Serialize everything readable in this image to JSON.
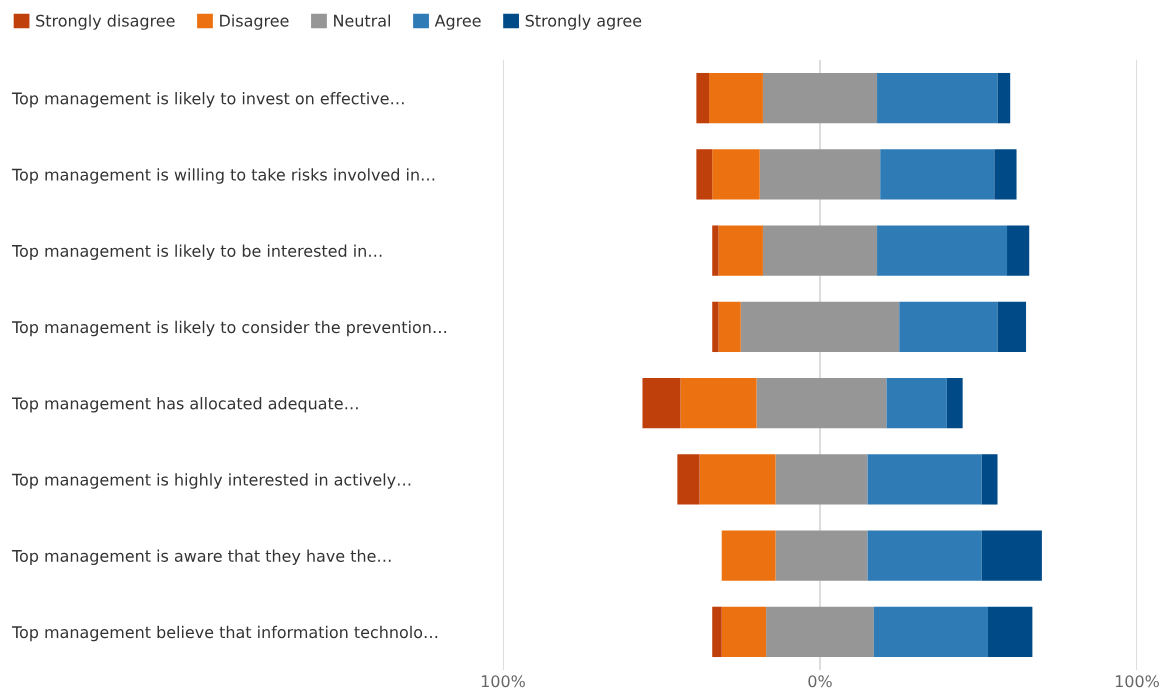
{
  "chart_data": {
    "type": "bar",
    "orientation": "horizontal",
    "stacked": true,
    "categories": [
      "Top management is likely to invest on effective…",
      "Top management is willing to take risks involved in…",
      "Top management is likely to be interested in…",
      "Top management is likely to consider the prevention…",
      "Top management has allocated adequate…",
      "Top management is highly interested in actively…",
      "Top management is aware that they have the…",
      "Top management believe that information technolo…"
    ],
    "series": [
      {
        "name": "Neutral",
        "color": "#969696",
        "values": [
          -18,
          -19,
          -18,
          -25,
          -20,
          -14,
          -14,
          -17
        ]
      },
      {
        "color": "#969696",
        "values": [
          18,
          19,
          18,
          25,
          21,
          15,
          15,
          17
        ]
      },
      {
        "name": "Disagree",
        "color": "#ec7211",
        "values": [
          -17,
          -15,
          -14,
          -7,
          -24,
          -24,
          -17,
          -14
        ]
      },
      {
        "name": "Agree",
        "color": "#2e7bb6",
        "values": [
          38,
          36,
          41,
          31,
          19,
          36,
          36,
          36
        ]
      },
      {
        "name": "Strongly disagree",
        "color": "#c0400c",
        "values": [
          -4,
          -5,
          -2,
          -2,
          -12,
          -7,
          0,
          -3
        ]
      },
      {
        "name": "Strongly agree",
        "color": "#004b87",
        "values": [
          4,
          7,
          7,
          9,
          5,
          5,
          19,
          14
        ]
      }
    ],
    "xlim": [
      -100,
      100
    ],
    "xticks": [
      {
        "value": -100,
        "label": "100%"
      },
      {
        "value": 0,
        "label": "0%"
      },
      {
        "value": 100,
        "label": "100%"
      }
    ],
    "grid": "x",
    "legend": "top left"
  }
}
